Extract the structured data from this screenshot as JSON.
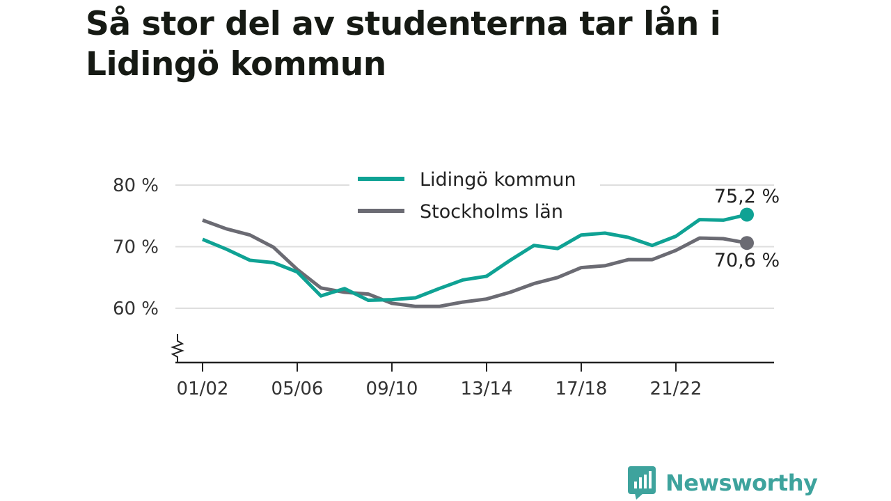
{
  "title": "Så stor del av studenterna tar lån i Lidingö kommun",
  "brand": "Newsworthy",
  "colors": {
    "lidingo": "#0fa294",
    "stockholm": "#6b6b73",
    "grid": "#dedede",
    "axis": "#222222",
    "brand": "#3ea39d"
  },
  "chart_data": {
    "type": "line",
    "title": "Så stor del av studenterna tar lån i Lidingö kommun",
    "xlabel": "",
    "ylabel": "",
    "ylim": [
      51,
      81
    ],
    "y_axis_break": true,
    "yticks": [
      60,
      70,
      80
    ],
    "ytick_labels": [
      "60 %",
      "70 %",
      "80 %"
    ],
    "x": [
      "01/02",
      "02/03",
      "03/04",
      "04/05",
      "05/06",
      "06/07",
      "07/08",
      "08/09",
      "09/10",
      "10/11",
      "11/12",
      "12/13",
      "13/14",
      "14/15",
      "15/16",
      "16/17",
      "17/18",
      "18/19",
      "19/20",
      "20/21",
      "21/22",
      "22/23",
      "23/24",
      "24/25"
    ],
    "xtick_labels": [
      "01/02",
      "05/06",
      "09/10",
      "13/14",
      "17/18",
      "21/22"
    ],
    "grid": true,
    "legend_position": "top-center",
    "series": [
      {
        "name": "Lidingö kommun",
        "color": "#0fa294",
        "values": [
          71.2,
          69.6,
          67.8,
          67.4,
          65.9,
          62.0,
          63.2,
          61.3,
          61.4,
          61.7,
          63.2,
          64.6,
          65.2,
          67.8,
          70.2,
          69.7,
          71.9,
          72.2,
          71.5,
          70.2,
          71.7,
          74.4,
          74.3,
          75.2
        ],
        "end_label": "75,2 %"
      },
      {
        "name": "Stockholms län",
        "color": "#6b6b73",
        "values": [
          74.3,
          72.9,
          71.9,
          69.9,
          66.3,
          63.3,
          62.6,
          62.3,
          60.8,
          60.3,
          60.3,
          61.0,
          61.5,
          62.6,
          64.0,
          65.0,
          66.6,
          66.9,
          67.9,
          67.9,
          69.4,
          71.4,
          71.3,
          70.6
        ],
        "end_label": "70,6 %"
      }
    ]
  }
}
